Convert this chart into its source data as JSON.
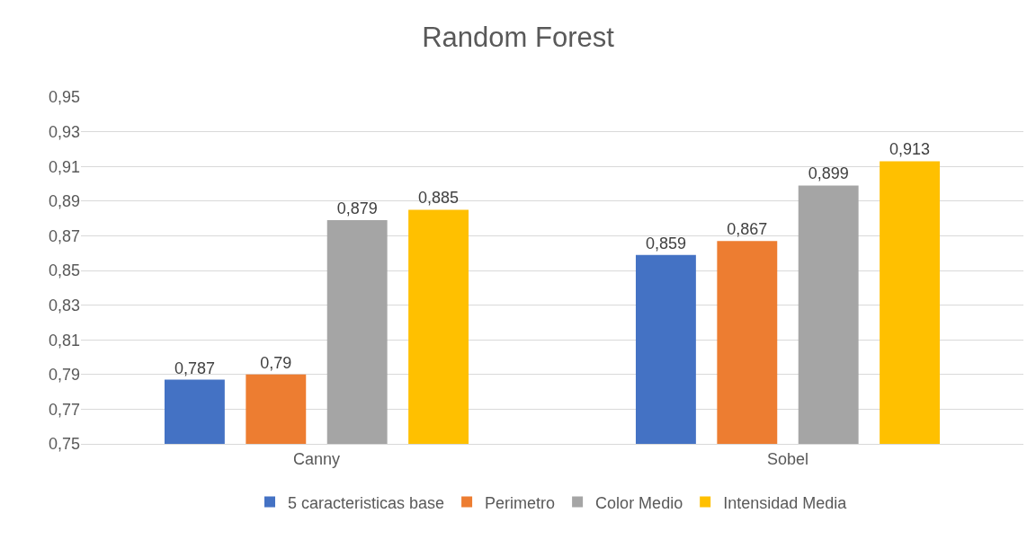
{
  "chart_data": {
    "type": "bar",
    "title": "Random Forest",
    "categories": [
      "Canny",
      "Sobel"
    ],
    "series": [
      {
        "name": "5 caracteristicas base",
        "color": "#4472c4",
        "values": [
          0.787,
          0.859
        ],
        "value_labels": [
          "0,787",
          "0,859"
        ]
      },
      {
        "name": "Perimetro",
        "color": "#ed7d31",
        "values": [
          0.79,
          0.867
        ],
        "value_labels": [
          "0,79",
          "0,867"
        ]
      },
      {
        "name": "Color Medio",
        "color": "#a5a5a5",
        "values": [
          0.879,
          0.899
        ],
        "value_labels": [
          "0,879",
          "0,899"
        ]
      },
      {
        "name": "Intensidad Media",
        "color": "#ffc000",
        "values": [
          0.885,
          0.913
        ],
        "value_labels": [
          "0,885",
          "0,913"
        ]
      }
    ],
    "ylim": [
      0.75,
      0.95
    ],
    "yticks": [
      {
        "value": 0.75,
        "label": "0,75"
      },
      {
        "value": 0.77,
        "label": "0,77"
      },
      {
        "value": 0.79,
        "label": "0,79"
      },
      {
        "value": 0.81,
        "label": "0,81"
      },
      {
        "value": 0.83,
        "label": "0,83"
      },
      {
        "value": 0.85,
        "label": "0,85"
      },
      {
        "value": 0.87,
        "label": "0,87"
      },
      {
        "value": 0.89,
        "label": "0,89"
      },
      {
        "value": 0.91,
        "label": "0,91"
      },
      {
        "value": 0.93,
        "label": "0,93"
      },
      {
        "value": 0.95,
        "label": "0,95"
      }
    ],
    "grid": "y",
    "legend": "bottom"
  }
}
